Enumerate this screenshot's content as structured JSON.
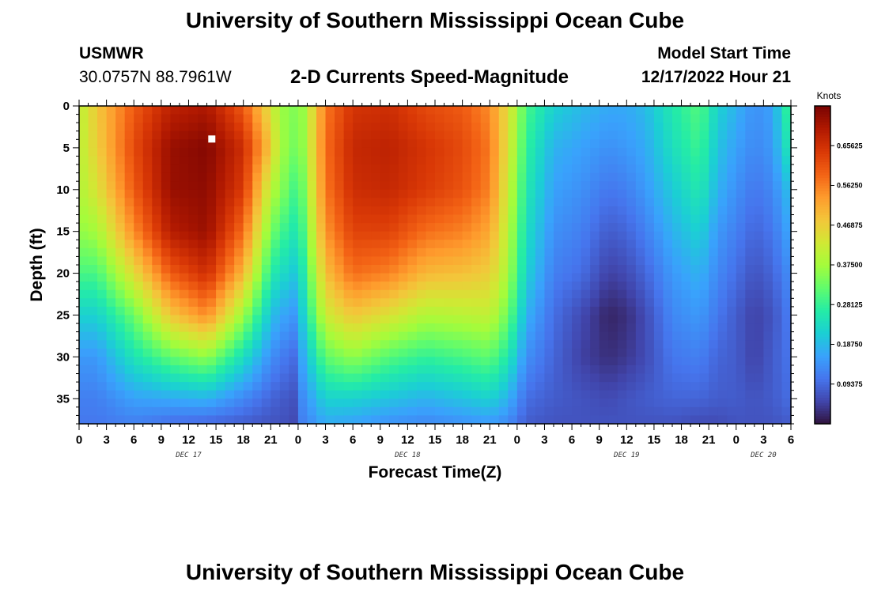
{
  "header": {
    "title": "University of Southern Mississippi Ocean Cube",
    "station": "USMWR",
    "coords": "30.0757N  88.7961W",
    "subtitle": "2-D Currents Speed-Magnitude",
    "model_start_label": "Model Start Time",
    "model_start_value": "12/17/2022 Hour 21"
  },
  "footer": {
    "title": "University of Southern Mississippi Ocean Cube"
  },
  "colors": {
    "ramp": [
      "#30123b",
      "#4145ab",
      "#4675ed",
      "#39a2fc",
      "#1bcfd4",
      "#24eca6",
      "#61fc6c",
      "#a4fc3b",
      "#d1e834",
      "#f3c63a",
      "#fe9b2d",
      "#f36315",
      "#d93806",
      "#b11901",
      "#7a0402"
    ],
    "marker": "#ffffff"
  },
  "chart_data": {
    "type": "heatmap",
    "title": "2-D Currents Speed-Magnitude",
    "xlabel": "Forecast Time(Z)",
    "ylabel": "Depth (ft)",
    "x_unit": "hours since Dec 17 00Z",
    "xlim": [
      0,
      78
    ],
    "ylim": [
      0,
      38
    ],
    "x_ticks": [
      {
        "x": 0,
        "label": "0"
      },
      {
        "x": 3,
        "label": "3"
      },
      {
        "x": 6,
        "label": "6"
      },
      {
        "x": 9,
        "label": "9"
      },
      {
        "x": 12,
        "label": "12"
      },
      {
        "x": 15,
        "label": "15"
      },
      {
        "x": 18,
        "label": "18"
      },
      {
        "x": 21,
        "label": "21"
      },
      {
        "x": 24,
        "label": "0"
      },
      {
        "x": 27,
        "label": "3"
      },
      {
        "x": 30,
        "label": "6"
      },
      {
        "x": 33,
        "label": "9"
      },
      {
        "x": 36,
        "label": "12"
      },
      {
        "x": 39,
        "label": "15"
      },
      {
        "x": 42,
        "label": "18"
      },
      {
        "x": 45,
        "label": "21"
      },
      {
        "x": 48,
        "label": "0"
      },
      {
        "x": 51,
        "label": "3"
      },
      {
        "x": 54,
        "label": "6"
      },
      {
        "x": 57,
        "label": "9"
      },
      {
        "x": 60,
        "label": "12"
      },
      {
        "x": 63,
        "label": "15"
      },
      {
        "x": 66,
        "label": "18"
      },
      {
        "x": 69,
        "label": "21"
      },
      {
        "x": 72,
        "label": "0"
      },
      {
        "x": 75,
        "label": "3"
      },
      {
        "x": 78,
        "label": "6"
      }
    ],
    "day_labels": [
      {
        "x": 12,
        "label": "DEC 17"
      },
      {
        "x": 36,
        "label": "DEC 18"
      },
      {
        "x": 60,
        "label": "DEC 19"
      },
      {
        "x": 75,
        "label": "DEC 20"
      }
    ],
    "y_ticks": [
      0,
      5,
      10,
      15,
      20,
      25,
      30,
      35
    ],
    "colorbar": {
      "unit": "Knots",
      "min": 0.0,
      "max": 0.75,
      "ticks": [
        {
          "value": 0.09375,
          "label": "0.09375"
        },
        {
          "value": 0.1875,
          "label": "0.18750"
        },
        {
          "value": 0.28125,
          "label": "0.28125"
        },
        {
          "value": 0.375,
          "label": "0.37500"
        },
        {
          "value": 0.46875,
          "label": "0.46875"
        },
        {
          "value": 0.5625,
          "label": "0.56250"
        },
        {
          "value": 0.65625,
          "label": "0.65625"
        }
      ]
    },
    "grid": {
      "x_step_hours": 1,
      "y_step_ft": 1,
      "x_range": [
        0,
        78
      ],
      "y_range": [
        0,
        38
      ]
    },
    "speed_profile_knots": {
      "depths_ft": [
        0,
        5,
        10,
        15,
        20,
        25,
        30,
        35,
        38
      ],
      "times_h": [
        0,
        2,
        6,
        10,
        14,
        18,
        21,
        22,
        23.5,
        24,
        25,
        27,
        30,
        34,
        38,
        42,
        45,
        47,
        49,
        52,
        55,
        58,
        60,
        62,
        65,
        68,
        70,
        72,
        74,
        76,
        78
      ],
      "values": [
        [
          0.4,
          0.4,
          0.39,
          0.36,
          0.3,
          0.22,
          0.15,
          0.12,
          0.11
        ],
        [
          0.48,
          0.47,
          0.44,
          0.38,
          0.3,
          0.22,
          0.15,
          0.12,
          0.11
        ],
        [
          0.6,
          0.62,
          0.6,
          0.55,
          0.45,
          0.33,
          0.25,
          0.16,
          0.12
        ],
        [
          0.68,
          0.72,
          0.72,
          0.69,
          0.6,
          0.48,
          0.32,
          0.17,
          0.1
        ],
        [
          0.7,
          0.74,
          0.73,
          0.72,
          0.66,
          0.55,
          0.36,
          0.18,
          0.09
        ],
        [
          0.6,
          0.66,
          0.64,
          0.58,
          0.5,
          0.37,
          0.24,
          0.13,
          0.08
        ],
        [
          0.44,
          0.48,
          0.4,
          0.34,
          0.27,
          0.2,
          0.14,
          0.09,
          0.07
        ],
        [
          0.37,
          0.38,
          0.36,
          0.3,
          0.24,
          0.17,
          0.12,
          0.08,
          0.07
        ],
        [
          0.35,
          0.34,
          0.3,
          0.26,
          0.21,
          0.15,
          0.1,
          0.07,
          0.06
        ],
        [
          0.33,
          0.32,
          0.28,
          0.24,
          0.2,
          0.17,
          0.14,
          0.12,
          0.11
        ],
        [
          0.4,
          0.4,
          0.38,
          0.35,
          0.31,
          0.26,
          0.2,
          0.15,
          0.13
        ],
        [
          0.57,
          0.58,
          0.57,
          0.54,
          0.49,
          0.42,
          0.32,
          0.22,
          0.17
        ],
        [
          0.65,
          0.67,
          0.66,
          0.63,
          0.58,
          0.48,
          0.36,
          0.22,
          0.16
        ],
        [
          0.66,
          0.68,
          0.67,
          0.63,
          0.56,
          0.44,
          0.31,
          0.2,
          0.14
        ],
        [
          0.62,
          0.65,
          0.64,
          0.58,
          0.5,
          0.39,
          0.28,
          0.18,
          0.13
        ],
        [
          0.6,
          0.62,
          0.61,
          0.56,
          0.49,
          0.4,
          0.3,
          0.2,
          0.14
        ],
        [
          0.55,
          0.57,
          0.56,
          0.52,
          0.47,
          0.41,
          0.32,
          0.22,
          0.15
        ],
        [
          0.45,
          0.44,
          0.42,
          0.4,
          0.38,
          0.33,
          0.26,
          0.18,
          0.13
        ],
        [
          0.3,
          0.28,
          0.26,
          0.24,
          0.22,
          0.18,
          0.14,
          0.1,
          0.08
        ],
        [
          0.22,
          0.18,
          0.16,
          0.14,
          0.12,
          0.1,
          0.09,
          0.08,
          0.07
        ],
        [
          0.19,
          0.16,
          0.14,
          0.12,
          0.1,
          0.06,
          0.05,
          0.07,
          0.07
        ],
        [
          0.17,
          0.14,
          0.11,
          0.08,
          0.05,
          0.02,
          0.03,
          0.06,
          0.07
        ],
        [
          0.17,
          0.15,
          0.12,
          0.09,
          0.06,
          0.03,
          0.04,
          0.07,
          0.07
        ],
        [
          0.19,
          0.17,
          0.15,
          0.12,
          0.09,
          0.06,
          0.06,
          0.08,
          0.07
        ],
        [
          0.26,
          0.24,
          0.21,
          0.18,
          0.15,
          0.13,
          0.11,
          0.09,
          0.07
        ],
        [
          0.31,
          0.29,
          0.26,
          0.22,
          0.18,
          0.15,
          0.12,
          0.09,
          0.06
        ],
        [
          0.22,
          0.2,
          0.18,
          0.15,
          0.13,
          0.11,
          0.09,
          0.08,
          0.06
        ],
        [
          0.18,
          0.16,
          0.14,
          0.12,
          0.1,
          0.08,
          0.08,
          0.08,
          0.07
        ],
        [
          0.14,
          0.13,
          0.11,
          0.09,
          0.07,
          0.05,
          0.05,
          0.07,
          0.07
        ],
        [
          0.16,
          0.15,
          0.13,
          0.11,
          0.09,
          0.07,
          0.08,
          0.08,
          0.07
        ],
        [
          0.31,
          0.27,
          0.2,
          0.17,
          0.14,
          0.12,
          0.11,
          0.1,
          0.08
        ]
      ]
    },
    "marker": {
      "x": 14.5,
      "y": 4,
      "label": ""
    }
  }
}
